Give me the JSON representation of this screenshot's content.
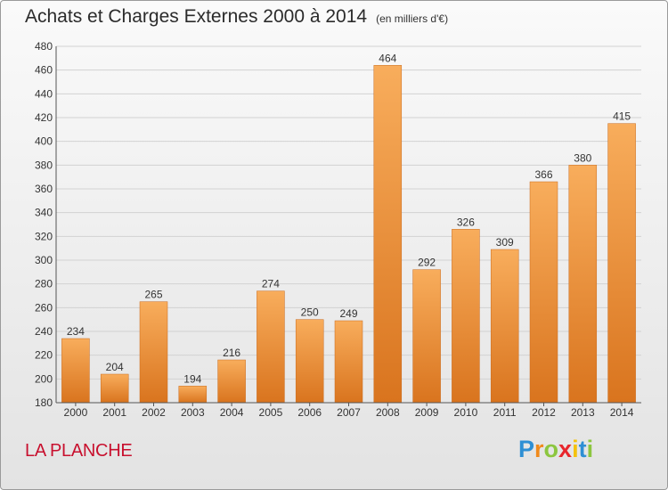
{
  "title": "Achats et Charges Externes 2000 à 2014",
  "unit": "(en milliers d'€)",
  "place": "LA PLANCHE",
  "logo": {
    "letters": [
      "P",
      "r",
      "o",
      "x",
      "i",
      "t",
      "i"
    ],
    "colors": [
      "#2e8fd4",
      "#f08a1c",
      "#8cc63f",
      "#e8262c",
      "#f4c20d",
      "#2e8fd4",
      "#8cc63f"
    ]
  },
  "colors": {
    "bar_top": "#f8ad5c",
    "bar_bottom": "#d9741e",
    "bar_stroke": "#c96a1c"
  },
  "chart_data": {
    "type": "bar",
    "title": "Achats et Charges Externes 2000 à 2014",
    "subtitle": "(en milliers d'€)",
    "xlabel": "",
    "ylabel": "",
    "categories": [
      "2000",
      "2001",
      "2002",
      "2003",
      "2004",
      "2005",
      "2006",
      "2007",
      "2008",
      "2009",
      "2010",
      "2011",
      "2012",
      "2013",
      "2014"
    ],
    "values": [
      234,
      204,
      265,
      194,
      216,
      274,
      250,
      249,
      464,
      292,
      326,
      309,
      366,
      380,
      415
    ],
    "ylim": [
      180,
      480
    ],
    "yticks": [
      180,
      200,
      220,
      240,
      260,
      280,
      300,
      320,
      340,
      360,
      380,
      400,
      420,
      440,
      460,
      480
    ],
    "grid": true,
    "legend": "none"
  }
}
